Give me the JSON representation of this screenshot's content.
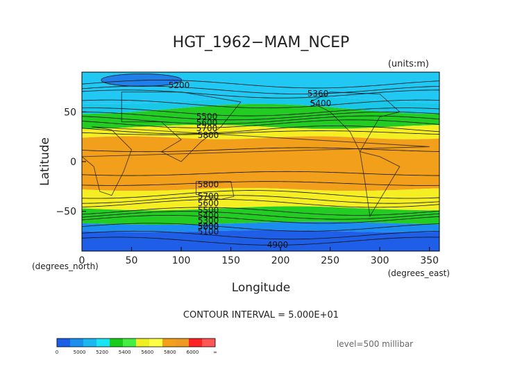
{
  "chart_data": {
    "type": "heatmap",
    "title": "HGT_1962−MAM_NCEP",
    "units": "(units:m)",
    "xlabel": "Longitude",
    "ylabel": "Latitude",
    "x_unit_label": "(degrees_east)",
    "y_unit_label": "(degrees_north)",
    "xlim": [
      0,
      360
    ],
    "ylim": [
      -90,
      90
    ],
    "x_ticks": [
      "0",
      "50",
      "100",
      "150",
      "200",
      "250",
      "300",
      "350"
    ],
    "y_ticks": [
      "50",
      "0",
      "−50"
    ],
    "contour_interval_text": "CONTOUR INTERVAL = 5.000E+01",
    "level_text": "level=500 millibar",
    "contour_labels": [
      "5200",
      "5360",
      "5400",
      "5500",
      "5600",
      "5700",
      "5800",
      "5800",
      "5700",
      "5600",
      "5500",
      "5400",
      "5300",
      "5200",
      "5100",
      "5000",
      "4900"
    ],
    "colorbar": {
      "labels": [
        "0",
        "5000",
        "5200",
        "5400",
        "5600",
        "5800",
        "6000",
        "∞"
      ],
      "colors": [
        "#1a5fe6",
        "#1a8fee",
        "#19b8f0",
        "#19e5f2",
        "#19cc19",
        "#44ee44",
        "#eeee22",
        "#ffff44",
        "#f2a019",
        "#ee9922",
        "#ff2222",
        "#ff5555"
      ]
    },
    "bands": [
      {
        "name": "below-5000",
        "color": "#1f5fe8"
      },
      {
        "name": "5000-5200",
        "color": "#1d8cf0"
      },
      {
        "name": "5200-5400",
        "color": "#22c8f4"
      },
      {
        "name": "5400-5600",
        "color": "#22cc22"
      },
      {
        "name": "5600-5800",
        "color": "#f4ee22"
      },
      {
        "name": "5800-6000",
        "color": "#f2a01c"
      }
    ]
  }
}
